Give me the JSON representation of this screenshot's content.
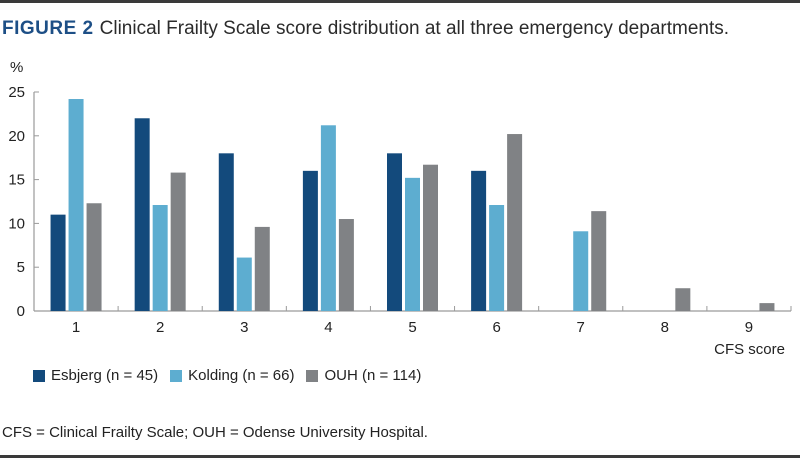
{
  "figure": {
    "label": "FIGURE 2",
    "caption": "Clinical Frailty Scale score distribution at all three emergency departments.",
    "footnote": "CFS = Clinical Frailty Scale; OUH = Odense University Hospital."
  },
  "chart_data": {
    "type": "bar",
    "title": "Clinical Frailty Scale score distribution at all three emergency departments.",
    "xlabel": "CFS score",
    "ylabel": "%",
    "ylim": [
      0,
      25
    ],
    "yticks": [
      0,
      5,
      10,
      15,
      20,
      25
    ],
    "ytick_labels": [
      "0",
      "5",
      "10",
      "15",
      "20",
      "25"
    ],
    "categories": [
      "1",
      "2",
      "3",
      "4",
      "5",
      "6",
      "7",
      "8",
      "9"
    ],
    "grid": false,
    "legend_position": "bottom-left",
    "series": [
      {
        "name": "Esbjerg (n = 45)",
        "color": "#134a7c",
        "values": [
          11,
          22,
          18,
          16,
          18,
          16,
          0,
          0,
          0
        ]
      },
      {
        "name": "Kolding (n = 66)",
        "color": "#5dadd0",
        "values": [
          24.2,
          12.1,
          6.1,
          21.2,
          15.2,
          12.1,
          9.1,
          0,
          0
        ]
      },
      {
        "name": "OUH (n = 114)",
        "color": "#808285",
        "values": [
          12.3,
          15.8,
          9.6,
          10.5,
          16.7,
          20.2,
          11.4,
          2.6,
          0.9
        ]
      }
    ]
  }
}
